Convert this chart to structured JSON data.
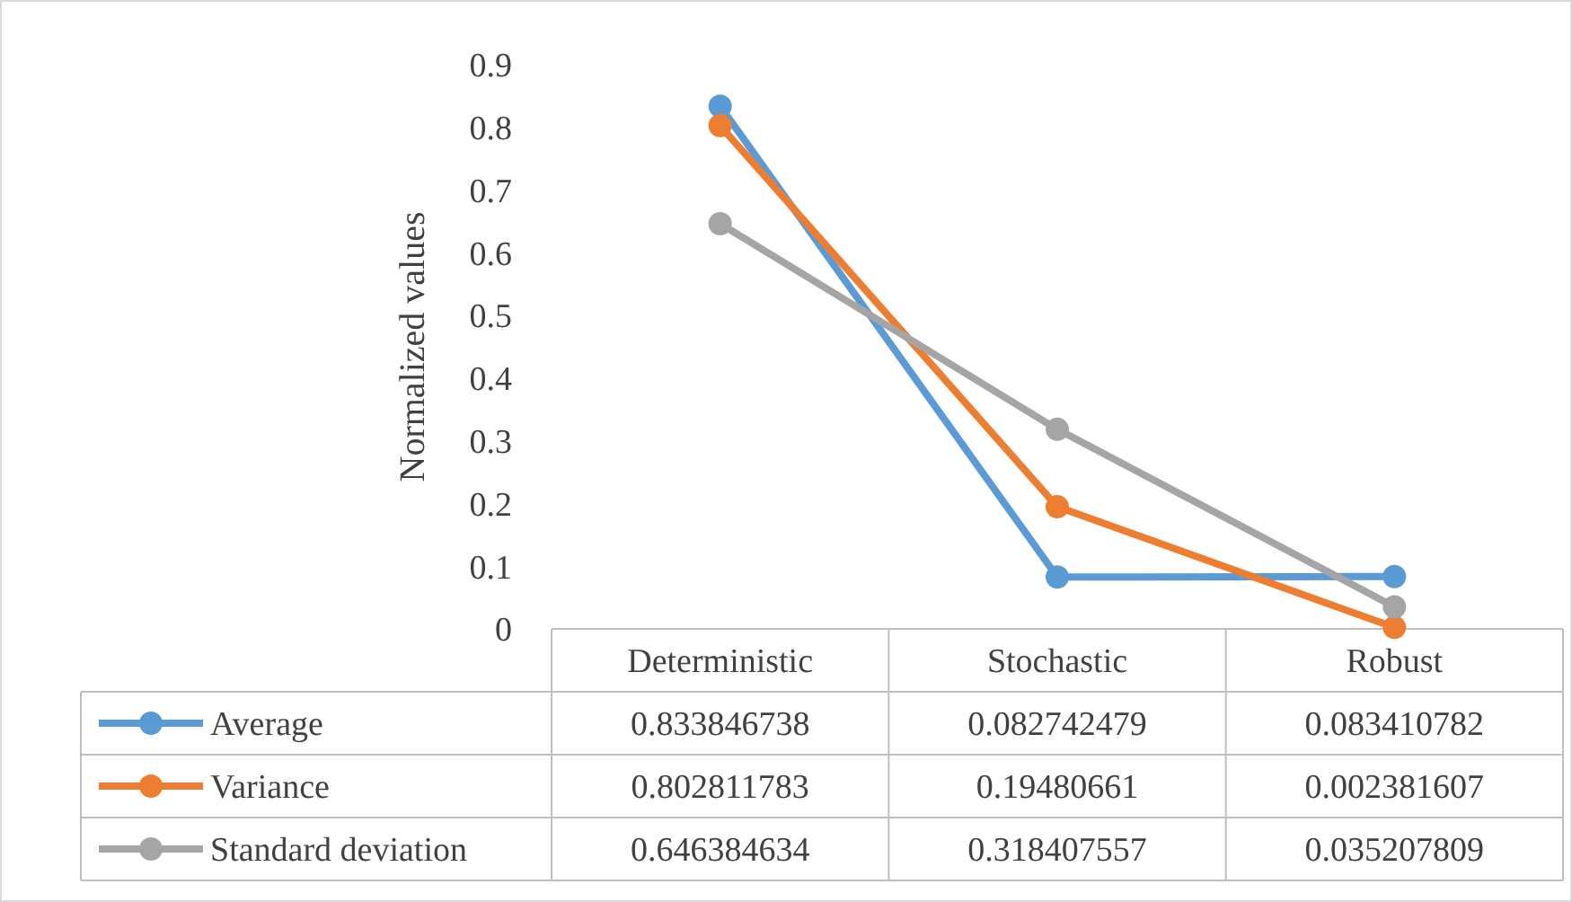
{
  "chart_data": {
    "type": "line",
    "ylabel": "Normalized values",
    "categories": [
      "Deterministic",
      "Stochastic",
      "Robust"
    ],
    "series": [
      {
        "name": "Average",
        "color": "#5b9bd5",
        "values": [
          0.833846738,
          0.082742479,
          0.083410782
        ]
      },
      {
        "name": "Variance",
        "color": "#ed7d31",
        "values": [
          0.802811783,
          0.19480661,
          0.002381607
        ]
      },
      {
        "name": "Standard deviation",
        "color": "#a5a5a5",
        "values": [
          0.646384634,
          0.318407557,
          0.035207809
        ]
      }
    ],
    "ylim": [
      0,
      0.9
    ],
    "yticks": [
      0,
      0.1,
      0.2,
      0.3,
      0.4,
      0.5,
      0.6,
      0.7,
      0.8,
      0.9
    ],
    "grid": false,
    "marker": "circle",
    "line_style": "solid",
    "legend": "bottom",
    "data_labels": true
  }
}
